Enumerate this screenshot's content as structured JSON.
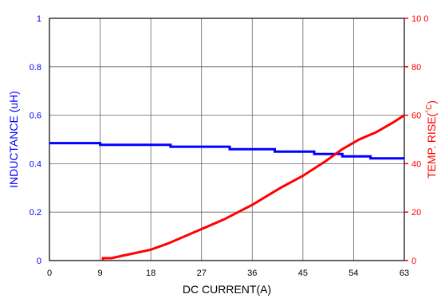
{
  "colors": {
    "inductance": "#0000ff",
    "temperature": "#ff0000",
    "axis": "#000000",
    "grid": "#666666"
  },
  "chart_data": {
    "type": "line",
    "xlabel": "DC CURRENT(A)",
    "ylabel_left": "INDUCTANCE (uH)",
    "ylabel_right": "TEMP. RISE(",
    "ylabel_right_unit": "°C",
    "ylabel_right_close": ")",
    "xlim": [
      0,
      63
    ],
    "ylim_left": [
      0,
      1
    ],
    "ylim_right": [
      0,
      100
    ],
    "grid": true,
    "x_ticks": [
      {
        "value": 0,
        "label": "0"
      },
      {
        "value": 9,
        "label": "9"
      },
      {
        "value": 18,
        "label": "18"
      },
      {
        "value": 27,
        "label": "27"
      },
      {
        "value": 36,
        "label": "36"
      },
      {
        "value": 45,
        "label": "45"
      },
      {
        "value": 54,
        "label": "54"
      },
      {
        "value": 63,
        "label": "63"
      }
    ],
    "y_left_ticks": [
      {
        "value": 0,
        "label": "0"
      },
      {
        "value": 0.2,
        "label": "0.2"
      },
      {
        "value": 0.4,
        "label": "0.4"
      },
      {
        "value": 0.6,
        "label": "0.6"
      },
      {
        "value": 0.8,
        "label": "0.8"
      },
      {
        "value": 1,
        "label": "1"
      }
    ],
    "y_right_ticks": [
      {
        "value": 0,
        "label": "0"
      },
      {
        "value": 20,
        "label": "20"
      },
      {
        "value": 40,
        "label": "40"
      },
      {
        "value": 60,
        "label": "60"
      },
      {
        "value": 80,
        "label": "80"
      },
      {
        "value": 100,
        "label": "10 0"
      }
    ],
    "series": [
      {
        "axis": "left",
        "color": "#0000ff",
        "points": [
          [
            0,
            0.485
          ],
          [
            9,
            0.485
          ],
          [
            9,
            0.478
          ],
          [
            21.5,
            0.478
          ],
          [
            21.5,
            0.47
          ],
          [
            32,
            0.47
          ],
          [
            32,
            0.46
          ],
          [
            40,
            0.46
          ],
          [
            40,
            0.45
          ],
          [
            47,
            0.45
          ],
          [
            47,
            0.44
          ],
          [
            52,
            0.44
          ],
          [
            52,
            0.43
          ],
          [
            57,
            0.43
          ],
          [
            57,
            0.422
          ],
          [
            63,
            0.422
          ]
        ]
      },
      {
        "axis": "right",
        "color": "#ff0000",
        "points": [
          [
            9.5,
            0
          ],
          [
            9.5,
            1
          ],
          [
            11,
            1
          ],
          [
            13,
            2
          ],
          [
            15,
            3
          ],
          [
            18,
            4.5
          ],
          [
            21,
            7
          ],
          [
            24,
            10
          ],
          [
            27,
            13
          ],
          [
            31,
            17
          ],
          [
            36,
            23
          ],
          [
            41,
            30
          ],
          [
            45,
            35
          ],
          [
            49,
            41
          ],
          [
            52,
            46
          ],
          [
            55,
            50
          ],
          [
            58,
            53
          ],
          [
            61,
            57
          ],
          [
            63,
            60
          ]
        ]
      }
    ]
  }
}
